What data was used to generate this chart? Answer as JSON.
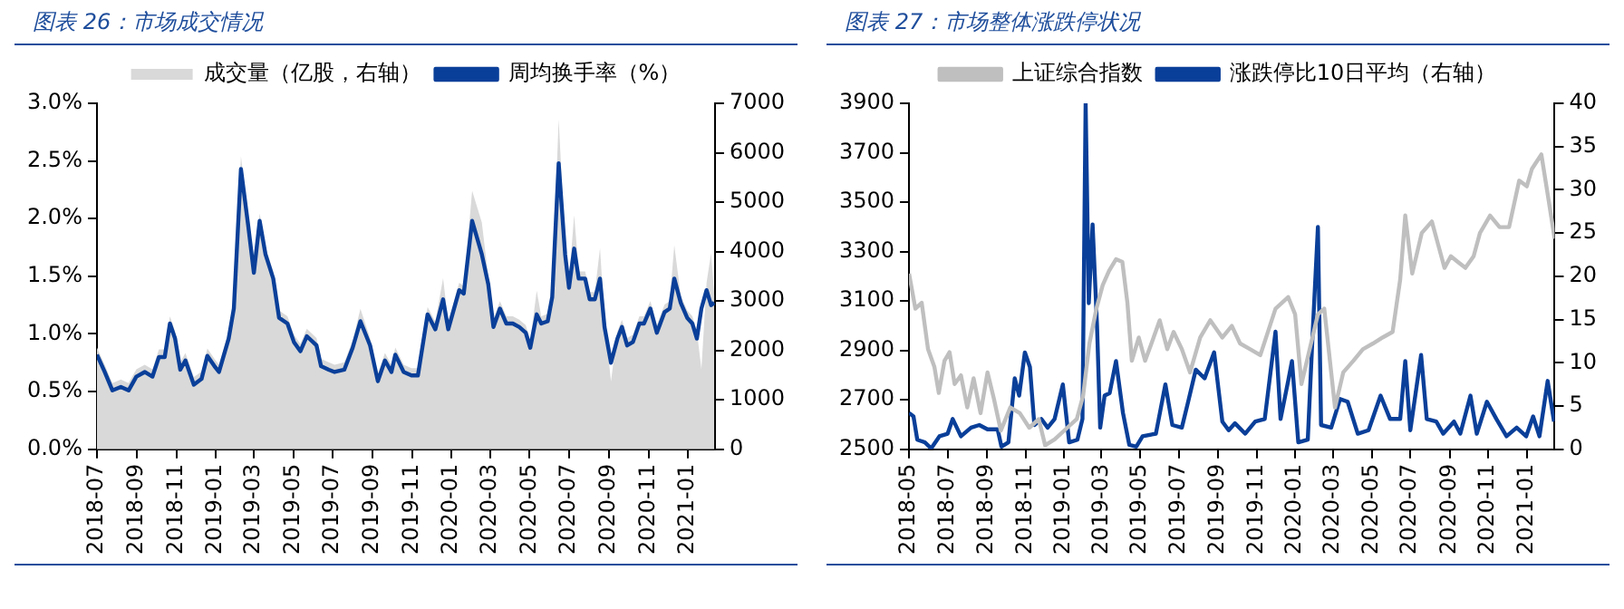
{
  "chart_data": [
    {
      "type": "line",
      "title": "图表 26：市场成交情况",
      "legend": "top",
      "marker": "none",
      "xlim": [
        "2018-07-01",
        "2021-02-12"
      ],
      "xticks": [
        {
          "value": "2018-07",
          "label": "2018-07"
        },
        {
          "value": "2018-09",
          "label": "2018-09"
        },
        {
          "value": "2018-11",
          "label": "2018-11"
        },
        {
          "value": "2019-01",
          "label": "2019-01"
        },
        {
          "value": "2019-03",
          "label": "2019-03"
        },
        {
          "value": "2019-05",
          "label": "2019-05"
        },
        {
          "value": "2019-07",
          "label": "2019-07"
        },
        {
          "value": "2019-09",
          "label": "2019-09"
        },
        {
          "value": "2019-11",
          "label": "2019-11"
        },
        {
          "value": "2020-01",
          "label": "2020-01"
        },
        {
          "value": "2020-03",
          "label": "2020-03"
        },
        {
          "value": "2020-05",
          "label": "2020-05"
        },
        {
          "value": "2020-07",
          "label": "2020-07"
        },
        {
          "value": "2020-09",
          "label": "2020-09"
        },
        {
          "value": "2020-11",
          "label": "2020-11"
        },
        {
          "value": "2021-01",
          "label": "2021-01"
        }
      ],
      "ylim": [
        0,
        3
      ],
      "yticks": [
        {
          "value": 0,
          "label": "0.0%"
        },
        {
          "value": 0.5,
          "label": "0.5%"
        },
        {
          "value": 1,
          "label": "1.0%"
        },
        {
          "value": 1.5,
          "label": "1.5%"
        },
        {
          "value": 2,
          "label": "2.0%"
        },
        {
          "value": 2.5,
          "label": "2.5%"
        },
        {
          "value": 3,
          "label": "3.0%"
        }
      ],
      "y2lim": [
        0,
        7000
      ],
      "y2ticks": [
        0,
        1000,
        2000,
        3000,
        4000,
        5000,
        6000,
        7000
      ],
      "series": [
        {
          "name": "成交量（亿股，右轴）",
          "type": "area",
          "axis": "y2",
          "color": "#d9d9d9",
          "x": [
            "2018-07-01",
            "2018-07-13",
            "2018-07-25",
            "2018-08-07",
            "2018-08-19",
            "2018-08-31",
            "2018-09-13",
            "2018-09-25",
            "2018-10-05",
            "2018-10-14",
            "2018-10-22",
            "2018-10-30",
            "2018-11-07",
            "2018-11-15",
            "2018-11-28",
            "2018-12-10",
            "2018-12-19",
            "2018-12-30",
            "2019-01-06",
            "2019-01-21",
            "2019-01-29",
            "2019-02-09",
            "2019-02-20",
            "2019-03-01",
            "2019-03-10",
            "2019-03-19",
            "2019-03-31",
            "2019-04-09",
            "2019-04-22",
            "2019-05-02",
            "2019-05-12",
            "2019-05-22",
            "2019-06-06",
            "2019-06-13",
            "2019-06-25",
            "2019-07-04",
            "2019-07-19",
            "2019-08-01",
            "2019-08-13",
            "2019-08-28",
            "2019-09-09",
            "2019-09-20",
            "2019-09-30",
            "2019-10-06",
            "2019-10-19",
            "2019-10-31",
            "2019-11-10",
            "2019-11-25",
            "2019-12-07",
            "2019-12-19",
            "2019-12-27",
            "2020-01-13",
            "2020-01-20",
            "2020-02-02",
            "2020-02-17",
            "2020-02-27",
            "2020-03-06",
            "2020-03-16",
            "2020-03-26",
            "2020-04-05",
            "2020-04-15",
            "2020-04-25",
            "2020-05-02",
            "2020-05-12",
            "2020-05-19",
            "2020-05-29",
            "2020-06-05",
            "2020-06-15",
            "2020-06-25",
            "2020-07-01",
            "2020-07-09",
            "2020-07-16",
            "2020-07-26",
            "2020-08-02",
            "2020-08-10",
            "2020-08-18",
            "2020-08-25",
            "2020-09-04",
            "2020-09-14",
            "2020-09-21",
            "2020-09-29",
            "2020-10-08",
            "2020-10-18",
            "2020-10-25",
            "2020-11-04",
            "2020-11-14",
            "2020-11-26",
            "2020-12-04",
            "2020-12-11",
            "2020-12-21",
            "2020-12-31",
            "2021-01-08",
            "2021-01-15",
            "2021-01-22",
            "2021-01-30",
            "2021-02-06",
            "2021-02-11"
          ],
          "values": [
            2060,
            1710,
            1340,
            1410,
            1340,
            1620,
            1710,
            1620,
            2020,
            2020,
            2690,
            2390,
            1760,
            1950,
            1460,
            1570,
            2040,
            1830,
            1710,
            2390,
            3000,
            5930,
            4700,
            3720,
            4770,
            4090,
            3600,
            2810,
            2690,
            2320,
            2130,
            2440,
            2250,
            1830,
            1760,
            1710,
            1760,
            2200,
            2840,
            2250,
            1530,
            1950,
            1710,
            2060,
            1710,
            1640,
            1640,
            2880,
            2580,
            3460,
            2580,
            3370,
            3300,
            5230,
            4590,
            3490,
            2620,
            3000,
            2690,
            2690,
            2620,
            2510,
            2200,
            3210,
            2690,
            2740,
            3230,
            6680,
            4090,
            3420,
            4740,
            3600,
            3600,
            3180,
            3180,
            4070,
            2620,
            1370,
            2390,
            2620,
            2250,
            2320,
            2690,
            2690,
            3000,
            2510,
            2930,
            3000,
            4130,
            3110,
            2810,
            2690,
            2390,
            1620,
            3370,
            3970,
            3110
          ]
        },
        {
          "name": "周均换手率（%）",
          "type": "line",
          "color": "#0a3f99",
          "x": [
            "2018-07-01",
            "2018-07-13",
            "2018-07-25",
            "2018-08-07",
            "2018-08-19",
            "2018-08-31",
            "2018-09-13",
            "2018-09-25",
            "2018-10-05",
            "2018-10-14",
            "2018-10-22",
            "2018-10-30",
            "2018-11-07",
            "2018-11-15",
            "2018-11-28",
            "2018-12-10",
            "2018-12-19",
            "2018-12-30",
            "2019-01-06",
            "2019-01-21",
            "2019-01-29",
            "2019-02-09",
            "2019-02-20",
            "2019-03-01",
            "2019-03-10",
            "2019-03-19",
            "2019-03-31",
            "2019-04-09",
            "2019-04-22",
            "2019-05-02",
            "2019-05-12",
            "2019-05-22",
            "2019-06-06",
            "2019-06-13",
            "2019-06-25",
            "2019-07-04",
            "2019-07-19",
            "2019-08-01",
            "2019-08-13",
            "2019-08-28",
            "2019-09-09",
            "2019-09-20",
            "2019-09-30",
            "2019-10-06",
            "2019-10-19",
            "2019-10-31",
            "2019-11-10",
            "2019-11-25",
            "2019-12-07",
            "2019-12-19",
            "2019-12-27",
            "2020-01-13",
            "2020-01-20",
            "2020-02-02",
            "2020-02-17",
            "2020-02-27",
            "2020-03-06",
            "2020-03-16",
            "2020-03-26",
            "2020-04-05",
            "2020-04-15",
            "2020-04-25",
            "2020-05-02",
            "2020-05-12",
            "2020-05-19",
            "2020-05-29",
            "2020-06-05",
            "2020-06-15",
            "2020-06-25",
            "2020-07-01",
            "2020-07-09",
            "2020-07-16",
            "2020-07-26",
            "2020-08-02",
            "2020-08-10",
            "2020-08-18",
            "2020-08-25",
            "2020-09-04",
            "2020-09-14",
            "2020-09-21",
            "2020-09-29",
            "2020-10-08",
            "2020-10-18",
            "2020-10-25",
            "2020-11-04",
            "2020-11-14",
            "2020-11-26",
            "2020-12-04",
            "2020-12-11",
            "2020-12-21",
            "2020-12-31",
            "2021-01-08",
            "2021-01-15",
            "2021-01-22",
            "2021-01-30",
            "2021-02-06",
            "2021-02-11"
          ],
          "values": [
            0.82,
            0.67,
            0.51,
            0.54,
            0.51,
            0.63,
            0.67,
            0.63,
            0.8,
            0.8,
            1.09,
            0.96,
            0.69,
            0.77,
            0.56,
            0.61,
            0.81,
            0.72,
            0.67,
            0.96,
            1.22,
            2.43,
            1.95,
            1.53,
            1.98,
            1.69,
            1.48,
            1.14,
            1.09,
            0.93,
            0.85,
            0.98,
            0.9,
            0.72,
            0.69,
            0.67,
            0.69,
            0.88,
            1.11,
            0.9,
            0.59,
            0.77,
            0.67,
            0.82,
            0.67,
            0.64,
            0.64,
            1.17,
            1.04,
            1.3,
            1.04,
            1.38,
            1.35,
            1.98,
            1.69,
            1.43,
            1.06,
            1.22,
            1.09,
            1.09,
            1.06,
            1.01,
            0.88,
            1.17,
            1.09,
            1.11,
            1.32,
            2.48,
            1.69,
            1.4,
            1.74,
            1.48,
            1.48,
            1.3,
            1.3,
            1.48,
            1.06,
            0.75,
            0.96,
            1.06,
            0.9,
            0.93,
            1.09,
            1.09,
            1.22,
            1.01,
            1.19,
            1.22,
            1.48,
            1.27,
            1.14,
            1.09,
            0.96,
            1.22,
            1.38,
            1.25,
            1.27
          ]
        }
      ]
    },
    {
      "type": "line",
      "title": "图表 27：市场整体涨跌停状况",
      "legend": "top",
      "marker": "none",
      "xlim": [
        "2018-05-01",
        "2021-02-14"
      ],
      "xticks": [
        {
          "value": "2018-05",
          "label": "2018-05"
        },
        {
          "value": "2018-07",
          "label": "2018-07"
        },
        {
          "value": "2018-09",
          "label": "2018-09"
        },
        {
          "value": "2018-11",
          "label": "2018-11"
        },
        {
          "value": "2019-01",
          "label": "2019-01"
        },
        {
          "value": "2019-03",
          "label": "2019-03"
        },
        {
          "value": "2019-05",
          "label": "2019-05"
        },
        {
          "value": "2019-07",
          "label": "2019-07"
        },
        {
          "value": "2019-09",
          "label": "2019-09"
        },
        {
          "value": "2019-11",
          "label": "2019-11"
        },
        {
          "value": "2020-01",
          "label": "2020-01"
        },
        {
          "value": "2020-03",
          "label": "2020-03"
        },
        {
          "value": "2020-05",
          "label": "2020-05"
        },
        {
          "value": "2020-07",
          "label": "2020-07"
        },
        {
          "value": "2020-09",
          "label": "2020-09"
        },
        {
          "value": "2020-11",
          "label": "2020-11"
        },
        {
          "value": "2021-01",
          "label": "2021-01"
        }
      ],
      "ylim": [
        2500,
        3900
      ],
      "yticks": [
        2500,
        2700,
        2900,
        3100,
        3300,
        3500,
        3700,
        3900
      ],
      "y2lim": [
        0,
        40
      ],
      "y2ticks": [
        0,
        5,
        10,
        15,
        20,
        25,
        30,
        35,
        40
      ],
      "series": [
        {
          "name": "上证综合指数",
          "type": "line",
          "color": "#bfbfbf",
          "x": [
            "2018-05-01",
            "2018-05-11",
            "2018-05-21",
            "2018-05-31",
            "2018-06-10",
            "2018-06-17",
            "2018-06-26",
            "2018-07-04",
            "2018-07-12",
            "2018-07-22",
            "2018-08-01",
            "2018-08-11",
            "2018-08-22",
            "2018-09-02",
            "2018-09-12",
            "2018-09-23",
            "2018-10-08",
            "2018-10-23",
            "2018-11-07",
            "2018-11-22",
            "2018-12-02",
            "2018-12-17",
            "2019-01-06",
            "2019-01-21",
            "2019-01-31",
            "2019-02-10",
            "2019-02-21",
            "2019-03-03",
            "2019-03-13",
            "2019-03-24",
            "2019-04-03",
            "2019-04-11",
            "2019-04-18",
            "2019-04-29",
            "2019-05-09",
            "2019-05-19",
            "2019-06-01",
            "2019-06-13",
            "2019-06-23",
            "2019-07-06",
            "2019-07-19",
            "2019-08-04",
            "2019-08-20",
            "2019-09-08",
            "2019-09-23",
            "2019-10-06",
            "2019-10-22",
            "2019-11-07",
            "2019-12-01",
            "2019-12-21",
            "2020-01-01",
            "2020-01-11",
            "2020-02-06",
            "2020-02-16",
            "2020-02-27",
            "2020-03-04",
            "2020-03-17",
            "2020-04-02",
            "2020-04-17",
            "2020-05-03",
            "2020-05-18",
            "2020-06-03",
            "2020-06-15",
            "2020-06-23",
            "2020-07-04",
            "2020-07-19",
            "2020-08-04",
            "2020-08-14",
            "2020-08-24",
            "2020-09-03",
            "2020-09-14",
            "2020-09-26",
            "2020-10-09",
            "2020-10-19",
            "2020-11-04",
            "2020-11-19",
            "2020-12-04",
            "2020-12-20",
            "2021-01-01",
            "2021-01-09",
            "2021-01-24",
            "2021-02-04",
            "2021-02-14"
          ],
          "values": [
            3211,
            3069,
            3093,
            2905,
            2834,
            2728,
            2858,
            2893,
            2764,
            2799,
            2669,
            2787,
            2646,
            2811,
            2705,
            2575,
            2669,
            2646,
            2587,
            2622,
            2516,
            2540,
            2587,
            2622,
            2716,
            2928,
            3069,
            3164,
            3222,
            3269,
            3258,
            3093,
            2858,
            2952,
            2858,
            2928,
            3022,
            2905,
            2975,
            2905,
            2811,
            2952,
            3022,
            2952,
            2999,
            2928,
            2905,
            2881,
            3069,
            3116,
            3046,
            2764,
            3046,
            3069,
            2811,
            2669,
            2811,
            2858,
            2905,
            2928,
            2952,
            2975,
            3187,
            3446,
            3211,
            3375,
            3422,
            3328,
            3234,
            3281,
            3258,
            3234,
            3281,
            3375,
            3446,
            3399,
            3399,
            3587,
            3564,
            3634,
            3693,
            3516,
            3352
          ]
        },
        {
          "name": "涨跌停比10日平均（右轴）",
          "type": "line",
          "axis": "y2",
          "color": "#0a3f99",
          "x": [
            "2018-05-01",
            "2018-05-08",
            "2018-05-14",
            "2018-05-26",
            "2018-06-05",
            "2018-06-18",
            "2018-07-01",
            "2018-07-09",
            "2018-07-22",
            "2018-08-07",
            "2018-08-20",
            "2018-09-02",
            "2018-09-18",
            "2018-09-24",
            "2018-10-05",
            "2018-10-15",
            "2018-10-22",
            "2018-10-31",
            "2018-11-08",
            "2018-11-15",
            "2018-11-26",
            "2018-12-06",
            "2018-12-17",
            "2018-12-30",
            "2019-01-09",
            "2019-01-22",
            "2019-01-30",
            "2019-02-04",
            "2019-02-09",
            "2019-02-15",
            "2019-02-22",
            "2019-02-27",
            "2019-03-06",
            "2019-03-14",
            "2019-03-24",
            "2019-04-04",
            "2019-04-14",
            "2019-04-25",
            "2019-05-05",
            "2019-05-26",
            "2019-06-10",
            "2019-06-21",
            "2019-07-06",
            "2019-07-16",
            "2019-07-28",
            "2019-08-11",
            "2019-08-26",
            "2019-09-08",
            "2019-09-18",
            "2019-09-28",
            "2019-10-14",
            "2019-10-30",
            "2019-11-14",
            "2019-12-01",
            "2019-12-09",
            "2019-12-21",
            "2019-12-27",
            "2020-01-06",
            "2020-01-21",
            "2020-01-29",
            "2020-02-06",
            "2020-02-11",
            "2020-02-27",
            "2020-03-12",
            "2020-03-24",
            "2020-04-09",
            "2020-04-26",
            "2020-05-15",
            "2020-05-30",
            "2020-06-15",
            "2020-06-23",
            "2020-07-01",
            "2020-07-18",
            "2020-07-27",
            "2020-08-11",
            "2020-08-22",
            "2020-09-08",
            "2020-09-18",
            "2020-10-04",
            "2020-10-14",
            "2020-10-30",
            "2020-11-14",
            "2020-11-30",
            "2020-12-16",
            "2020-12-31",
            "2021-01-11",
            "2021-01-21",
            "2021-02-03",
            "2021-02-13"
          ],
          "values": [
            4.2,
            3.8,
            1.1,
            0.8,
            0.1,
            1.5,
            1.8,
            3.5,
            1.5,
            2.5,
            2.8,
            2.3,
            2.3,
            0.3,
            0.8,
            8.2,
            6.2,
            11.2,
            9.5,
            2.8,
            3.5,
            2.5,
            3.5,
            7.5,
            0.8,
            1.1,
            3.5,
            40,
            16.9,
            26,
            14.3,
            2.5,
            6.2,
            6.5,
            10.2,
            4.2,
            0.5,
            0.3,
            1.5,
            1.8,
            7.5,
            2.8,
            2.5,
            5.5,
            9.2,
            8.2,
            11.2,
            3.2,
            2.2,
            3,
            1.8,
            3.2,
            3.5,
            13.6,
            3.5,
            7.9,
            10.2,
            0.8,
            1.1,
            13.9,
            25.7,
            2.8,
            2.5,
            5.8,
            5.5,
            1.8,
            2.2,
            6.2,
            3.5,
            3.5,
            10.2,
            2.2,
            10.9,
            3.5,
            3.2,
            1.8,
            3.2,
            1.8,
            6.2,
            1.8,
            5.5,
            3.5,
            1.5,
            2.5,
            1.5,
            3.8,
            1.5,
            7.9,
            3.2
          ]
        }
      ]
    }
  ]
}
